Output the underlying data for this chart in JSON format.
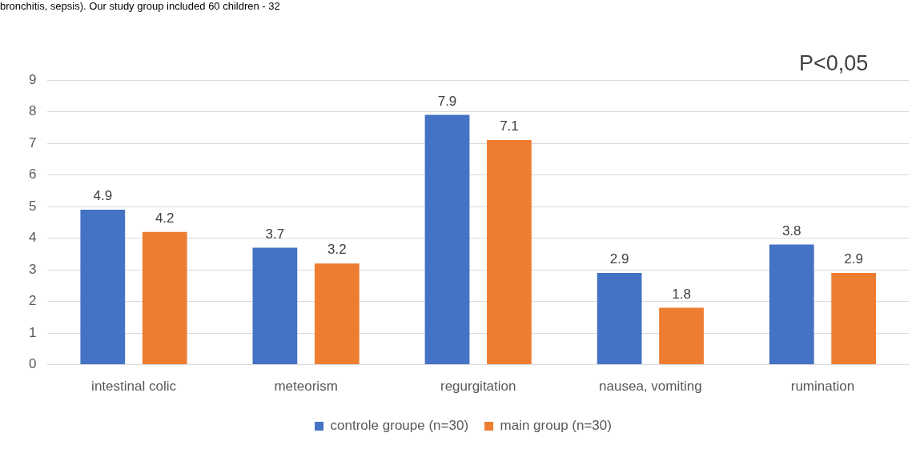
{
  "chart_data": {
    "type": "bar",
    "categories": [
      "intestinal colic",
      "meteorism",
      "regurgitation",
      "nausea, vomiting",
      "rumination"
    ],
    "series": [
      {
        "name": "controle groupe (n=30)",
        "color": "#4472c4",
        "values": [
          4.9,
          3.7,
          7.9,
          2.9,
          3.8
        ]
      },
      {
        "name": "main group (n=30)",
        "color": "#ed7d31",
        "values": [
          4.2,
          3.2,
          7.1,
          1.8,
          2.9
        ]
      }
    ],
    "ylim": [
      0,
      9
    ],
    "yticks": [
      0,
      1,
      2,
      3,
      4,
      5,
      6,
      7,
      8,
      9
    ],
    "grid": "y",
    "legend": "bottom",
    "data_labels": true,
    "annotations": [
      "bronchitis, sepsis). Our study group included 60 children - 32",
      "P<0,05"
    ]
  }
}
